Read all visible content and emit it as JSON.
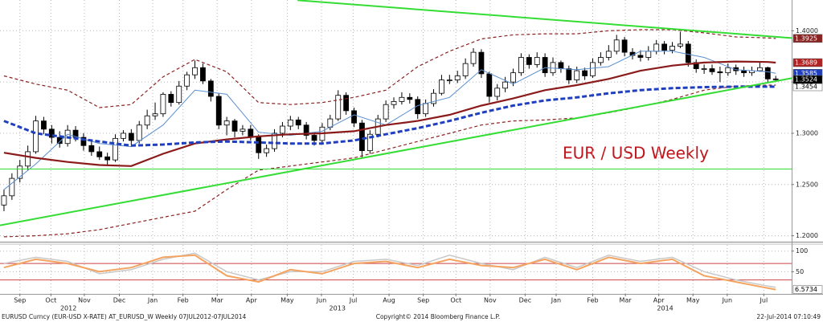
{
  "chart_data": [
    {
      "type": "candlestick",
      "annotation": "EUR / USD Weekly",
      "xlim": [
        -0.5,
        99
      ],
      "xticks": [
        {
          "value": 2.0,
          "label": "Sep"
        },
        {
          "value": 5.9,
          "label": "Oct"
        },
        {
          "value": 10.1,
          "label": "Nov"
        },
        {
          "value": 14.5,
          "label": "Dec"
        },
        {
          "value": 18.7,
          "label": "Jan"
        },
        {
          "value": 22.5,
          "label": "Feb"
        },
        {
          "value": 26.8,
          "label": "Mar"
        },
        {
          "value": 31.1,
          "label": "Apr"
        },
        {
          "value": 35.6,
          "label": "May"
        },
        {
          "value": 39.9,
          "label": "Jun"
        },
        {
          "value": 43.9,
          "label": "Jul"
        },
        {
          "value": 48.4,
          "label": "Aug"
        },
        {
          "value": 52.7,
          "label": "Sep"
        },
        {
          "value": 56.8,
          "label": "Oct"
        },
        {
          "value": 61.1,
          "label": "Nov"
        },
        {
          "value": 65.5,
          "label": "Dec"
        },
        {
          "value": 69.4,
          "label": "Jan"
        },
        {
          "value": 74.0,
          "label": "Feb"
        },
        {
          "value": 78.1,
          "label": "Mar"
        },
        {
          "value": 82.3,
          "label": "Apr"
        },
        {
          "value": 86.6,
          "label": "May"
        },
        {
          "value": 90.9,
          "label": "Jun"
        },
        {
          "value": 95.5,
          "label": "Jul"
        }
      ],
      "year_ticks": [
        {
          "value": 8.1,
          "label": "2012"
        },
        {
          "value": 41.9,
          "label": "2013"
        },
        {
          "value": 83.1,
          "label": "2014"
        }
      ],
      "ylim": [
        1.195,
        1.43
      ],
      "yticks": [
        {
          "value": 1.2,
          "label": "1.2000"
        },
        {
          "value": 1.25,
          "label": "1.2500"
        },
        {
          "value": 1.3,
          "label": "1.3000"
        },
        {
          "value": 1.35,
          "label": "1.3500"
        },
        {
          "value": 1.4,
          "label": "1.4000"
        }
      ],
      "grid": true,
      "candles": {
        "up_color": "#ffffff",
        "down_color": "#000000",
        "label_bg": "#000000",
        "label_fg": "#ffffff",
        "open": [
          1.23,
          1.239,
          1.256,
          1.268,
          1.282,
          1.312,
          1.304,
          1.296,
          1.29,
          1.303,
          1.296,
          1.288,
          1.282,
          1.277,
          1.274,
          1.295,
          1.3,
          1.293,
          1.308,
          1.317,
          1.319,
          1.338,
          1.33,
          1.346,
          1.357,
          1.364,
          1.351,
          1.336,
          1.308,
          1.312,
          1.302,
          1.304,
          1.297,
          1.281,
          1.285,
          1.3,
          1.307,
          1.313,
          1.308,
          1.298,
          1.293,
          1.306,
          1.314,
          1.337,
          1.322,
          1.31,
          1.283,
          1.299,
          1.314,
          1.328,
          1.331,
          1.335,
          1.333,
          1.319,
          1.329,
          1.339,
          1.352,
          1.352,
          1.356,
          1.368,
          1.379,
          1.358,
          1.336,
          1.344,
          1.35,
          1.359,
          1.374,
          1.367,
          1.374,
          1.359,
          1.369,
          1.363,
          1.352,
          1.361,
          1.356,
          1.369,
          1.374,
          1.38,
          1.391,
          1.379,
          1.376,
          1.374,
          1.38,
          1.387,
          1.381,
          1.385,
          1.387,
          1.369,
          1.363,
          1.363,
          1.36,
          1.359,
          1.364,
          1.361,
          1.359,
          1.361,
          1.364,
          1.353
        ],
        "high": [
          1.245,
          1.261,
          1.274,
          1.288,
          1.317,
          1.316,
          1.308,
          1.302,
          1.308,
          1.307,
          1.3,
          1.292,
          1.287,
          1.281,
          1.299,
          1.303,
          1.304,
          1.312,
          1.323,
          1.33,
          1.34,
          1.341,
          1.351,
          1.36,
          1.371,
          1.368,
          1.353,
          1.339,
          1.316,
          1.314,
          1.308,
          1.308,
          1.299,
          1.289,
          1.304,
          1.311,
          1.317,
          1.316,
          1.311,
          1.301,
          1.31,
          1.318,
          1.342,
          1.34,
          1.325,
          1.313,
          1.303,
          1.318,
          1.332,
          1.335,
          1.34,
          1.339,
          1.336,
          1.333,
          1.343,
          1.357,
          1.357,
          1.361,
          1.373,
          1.383,
          1.382,
          1.36,
          1.348,
          1.355,
          1.363,
          1.378,
          1.377,
          1.379,
          1.378,
          1.374,
          1.371,
          1.366,
          1.365,
          1.364,
          1.373,
          1.379,
          1.386,
          1.396,
          1.394,
          1.383,
          1.381,
          1.385,
          1.391,
          1.39,
          1.389,
          1.399,
          1.39,
          1.372,
          1.367,
          1.367,
          1.365,
          1.368,
          1.367,
          1.365,
          1.365,
          1.37,
          1.365,
          1.356
        ],
        "low": [
          1.224,
          1.235,
          1.252,
          1.264,
          1.28,
          1.299,
          1.29,
          1.286,
          1.287,
          1.292,
          1.283,
          1.278,
          1.274,
          1.269,
          1.272,
          1.292,
          1.288,
          1.29,
          1.304,
          1.313,
          1.316,
          1.326,
          1.328,
          1.342,
          1.353,
          1.348,
          1.331,
          1.304,
          1.298,
          1.296,
          1.298,
          1.293,
          1.275,
          1.277,
          1.282,
          1.296,
          1.303,
          1.304,
          1.294,
          1.288,
          1.291,
          1.303,
          1.312,
          1.318,
          1.306,
          1.276,
          1.28,
          1.296,
          1.311,
          1.324,
          1.328,
          1.329,
          1.314,
          1.316,
          1.326,
          1.337,
          1.348,
          1.349,
          1.353,
          1.365,
          1.354,
          1.33,
          1.332,
          1.34,
          1.346,
          1.356,
          1.363,
          1.364,
          1.355,
          1.356,
          1.359,
          1.348,
          1.349,
          1.352,
          1.354,
          1.366,
          1.371,
          1.377,
          1.375,
          1.372,
          1.37,
          1.371,
          1.377,
          1.377,
          1.378,
          1.383,
          1.365,
          1.359,
          1.358,
          1.357,
          1.35,
          1.356,
          1.357,
          1.355,
          1.356,
          1.36,
          1.35,
          1.35
        ],
        "close": [
          1.239,
          1.256,
          1.268,
          1.282,
          1.312,
          1.304,
          1.296,
          1.29,
          1.303,
          1.296,
          1.288,
          1.282,
          1.277,
          1.274,
          1.295,
          1.3,
          1.293,
          1.308,
          1.317,
          1.319,
          1.338,
          1.33,
          1.346,
          1.357,
          1.364,
          1.351,
          1.336,
          1.308,
          1.312,
          1.302,
          1.304,
          1.297,
          1.281,
          1.285,
          1.3,
          1.307,
          1.313,
          1.308,
          1.298,
          1.293,
          1.306,
          1.314,
          1.337,
          1.322,
          1.31,
          1.283,
          1.299,
          1.314,
          1.328,
          1.331,
          1.335,
          1.333,
          1.319,
          1.329,
          1.339,
          1.352,
          1.352,
          1.356,
          1.368,
          1.379,
          1.358,
          1.336,
          1.344,
          1.35,
          1.359,
          1.374,
          1.367,
          1.374,
          1.359,
          1.369,
          1.363,
          1.352,
          1.361,
          1.356,
          1.369,
          1.374,
          1.38,
          1.391,
          1.379,
          1.376,
          1.374,
          1.38,
          1.387,
          1.381,
          1.385,
          1.387,
          1.369,
          1.363,
          1.363,
          1.36,
          1.359,
          1.364,
          1.361,
          1.359,
          1.361,
          1.364,
          1.353,
          1.3524
        ]
      },
      "series": [
        {
          "color": "#8b2323",
          "width": 1.2,
          "dash": "4 3",
          "label_bg": "#8b2323",
          "label_fg": "#ffffff",
          "x": [
            0,
            4,
            8,
            12,
            16,
            20,
            24,
            28,
            32,
            36,
            40,
            44,
            48,
            52,
            56,
            60,
            64,
            68,
            72,
            76,
            80,
            84,
            88,
            92,
            96,
            97
          ],
          "values": [
            1.356,
            1.348,
            1.342,
            1.325,
            1.328,
            1.355,
            1.372,
            1.36,
            1.33,
            1.328,
            1.33,
            1.335,
            1.342,
            1.365,
            1.38,
            1.392,
            1.396,
            1.397,
            1.397,
            1.4,
            1.401,
            1.401,
            1.398,
            1.394,
            1.393,
            1.3925
          ]
        },
        {
          "color": "#8b2323",
          "width": 1.2,
          "dash": "4 3",
          "x": [
            0,
            4,
            8,
            12,
            16,
            20,
            24,
            28,
            32,
            36,
            40,
            44,
            48,
            52,
            56,
            60,
            64,
            68,
            72,
            76,
            80,
            84,
            88,
            92,
            96,
            97
          ],
          "values": [
            1.199,
            1.2,
            1.202,
            1.206,
            1.212,
            1.218,
            1.224,
            1.245,
            1.264,
            1.268,
            1.272,
            1.276,
            1.284,
            1.292,
            1.3,
            1.308,
            1.312,
            1.313,
            1.315,
            1.32,
            1.326,
            1.333,
            1.342,
            1.346,
            1.347,
            1.347
          ]
        },
        {
          "color": "#5b8fd0",
          "width": 1,
          "dash": "",
          "label_bg": "#1f3fbf",
          "label_fg": "#ffffff",
          "x": [
            0,
            4,
            8,
            12,
            16,
            20,
            24,
            28,
            32,
            36,
            40,
            44,
            48,
            52,
            56,
            60,
            64,
            68,
            72,
            76,
            80,
            84,
            88,
            92,
            96,
            97
          ],
          "values": [
            1.245,
            1.27,
            1.299,
            1.29,
            1.287,
            1.308,
            1.342,
            1.338,
            1.301,
            1.298,
            1.302,
            1.318,
            1.308,
            1.327,
            1.335,
            1.362,
            1.348,
            1.364,
            1.362,
            1.365,
            1.38,
            1.38,
            1.374,
            1.362,
            1.36,
            1.3585
          ]
        },
        {
          "color": "#8b1a1a",
          "width": 2.2,
          "dash": "",
          "label_bg": "#b22222",
          "label_fg": "#ffffff",
          "x": [
            0,
            4,
            8,
            12,
            16,
            20,
            24,
            28,
            32,
            36,
            40,
            44,
            48,
            52,
            56,
            60,
            64,
            68,
            72,
            76,
            80,
            84,
            88,
            92,
            96,
            97
          ],
          "values": [
            1.281,
            1.276,
            1.272,
            1.269,
            1.268,
            1.28,
            1.29,
            1.294,
            1.297,
            1.299,
            1.3,
            1.302,
            1.308,
            1.312,
            1.318,
            1.327,
            1.334,
            1.342,
            1.347,
            1.353,
            1.361,
            1.366,
            1.369,
            1.37,
            1.3695,
            1.3689
          ]
        },
        {
          "color": "#1f3fbf",
          "width": 3,
          "dash": "6 3",
          "label_bg": "#ffffff",
          "label_fg": "#000000",
          "x": [
            0,
            4,
            8,
            12,
            16,
            20,
            24,
            28,
            32,
            36,
            40,
            44,
            48,
            52,
            56,
            60,
            64,
            68,
            72,
            76,
            80,
            84,
            88,
            92,
            96,
            97
          ],
          "values": [
            1.312,
            1.3,
            1.296,
            1.292,
            1.288,
            1.289,
            1.291,
            1.292,
            1.291,
            1.29,
            1.29,
            1.293,
            1.299,
            1.305,
            1.312,
            1.32,
            1.327,
            1.332,
            1.335,
            1.339,
            1.342,
            1.344,
            1.345,
            1.3455,
            1.3455,
            1.3454
          ]
        },
        {
          "color": "#33dd33",
          "width": 2,
          "dash": "",
          "x": [
            36.9,
            99
          ],
          "values": [
            1.4298,
            1.3929
          ]
        },
        {
          "color": "#33dd33",
          "width": 2,
          "dash": "",
          "x": [
            -0.5,
            99
          ],
          "values": [
            1.2102,
            1.3537
          ]
        },
        {
          "color": "#33dd33",
          "width": 1,
          "dash": "",
          "x": [
            -0.5,
            99
          ],
          "values": [
            1.2651,
            1.2651
          ]
        }
      ]
    },
    {
      "type": "line",
      "xlim": [
        -0.5,
        99
      ],
      "ylim": [
        -4,
        115
      ],
      "yticks": [
        100,
        50
      ],
      "reference_lines": [
        70,
        30
      ],
      "reference_color": "#cc4444",
      "series": [
        {
          "color": "#c8c8c8",
          "width": 1.5,
          "x": [
            0,
            4,
            8,
            12,
            16,
            20,
            24,
            28,
            32,
            36,
            40,
            44,
            48,
            52,
            56,
            60,
            64,
            68,
            72,
            76,
            80,
            84,
            88,
            92,
            96,
            97
          ],
          "values": [
            70,
            85,
            75,
            45,
            55,
            80,
            95,
            50,
            30,
            50,
            50,
            75,
            80,
            65,
            90,
            70,
            55,
            85,
            60,
            90,
            75,
            85,
            50,
            30,
            15,
            12
          ]
        },
        {
          "color": "#f4a460",
          "width": 2,
          "label_bg": "#ffffff",
          "label_fg": "#000000",
          "x": [
            0,
            4,
            8,
            12,
            16,
            20,
            24,
            28,
            32,
            36,
            40,
            44,
            48,
            52,
            56,
            60,
            64,
            68,
            72,
            76,
            80,
            84,
            88,
            92,
            96,
            97
          ],
          "values": [
            60,
            80,
            70,
            50,
            60,
            85,
            90,
            40,
            25,
            55,
            45,
            70,
            75,
            60,
            80,
            65,
            60,
            80,
            55,
            85,
            70,
            80,
            40,
            25,
            10,
            6.5734
          ]
        }
      ]
    }
  ],
  "footer": {
    "left": "EURUSD Curncy (EUR-USD X-RATE) AT_EURUSD_W  Weekly 07JUL2012-07JUL2014",
    "center": "Copyright© 2014 Bloomberg Finance L.P.",
    "right": "22-Jul-2014 07:10:49"
  }
}
